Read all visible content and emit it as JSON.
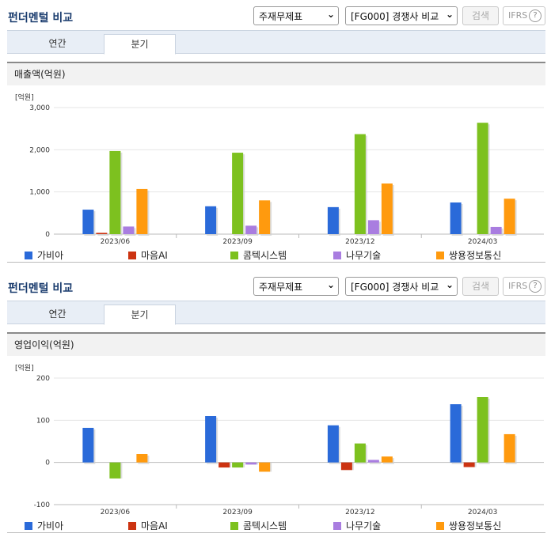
{
  "panels": [
    {
      "title": "펀더멘털 비교",
      "select_statement": "주재무제표",
      "select_compare": "[FG000] 경쟁사 비교",
      "search_label": "검색",
      "ifrs_label": "IFRS",
      "ifrs_help": "?",
      "tabs": [
        {
          "label": "연간",
          "active": false
        },
        {
          "label": "분기",
          "active": true
        }
      ],
      "chart_title": "매출액(억원)"
    },
    {
      "title": "펀더멘털 비교",
      "select_statement": "주재무제표",
      "select_compare": "[FG000] 경쟁사 비교",
      "search_label": "검색",
      "ifrs_label": "IFRS",
      "ifrs_help": "?",
      "tabs": [
        {
          "label": "연간",
          "active": false
        },
        {
          "label": "분기",
          "active": true
        }
      ],
      "chart_title": "영업이익(억원)"
    }
  ],
  "colors": {
    "가비아": "#2a6ad9",
    "마음AI": "#cc3311",
    "콤텍시스템": "#7dc11f",
    "나무기술": "#a97de0",
    "쌍용정보통신": "#ff9a0e"
  },
  "chart_data": [
    {
      "type": "bar",
      "title": "매출액(억원)",
      "unit": "[억원]",
      "categories": [
        "2023/06",
        "2023/09",
        "2023/12",
        "2024/03"
      ],
      "yticks": [
        "3,000",
        "2,000",
        "1,000",
        "0"
      ],
      "ylim": [
        0,
        3000
      ],
      "tick_values": [
        3000,
        2000,
        1000,
        0
      ],
      "grid": true,
      "legend": "bottom",
      "series": [
        {
          "name": "가비아",
          "values": [
            580,
            660,
            640,
            750
          ]
        },
        {
          "name": "마음AI",
          "values": [
            30,
            0,
            0,
            0
          ]
        },
        {
          "name": "콤텍시스템",
          "values": [
            1970,
            1930,
            2370,
            2640
          ]
        },
        {
          "name": "나무기술",
          "values": [
            180,
            200,
            330,
            170
          ]
        },
        {
          "name": "쌍용정보통신",
          "values": [
            1070,
            800,
            1200,
            840
          ]
        }
      ]
    },
    {
      "type": "bar",
      "title": "영업이익(억원)",
      "unit": "[억원]",
      "categories": [
        "2023/06",
        "2023/09",
        "2023/12",
        "2024/03"
      ],
      "yticks": [
        "200",
        "100",
        "0",
        "-100"
      ],
      "ylim": [
        -100,
        200
      ],
      "tick_values": [
        200,
        100,
        0,
        -100
      ],
      "grid": true,
      "legend": "bottom",
      "series": [
        {
          "name": "가비아",
          "values": [
            82,
            110,
            88,
            138
          ]
        },
        {
          "name": "마음AI",
          "values": [
            0,
            -12,
            -18,
            -11
          ]
        },
        {
          "name": "콤텍시스템",
          "values": [
            -38,
            -12,
            45,
            155
          ]
        },
        {
          "name": "나무기술",
          "values": [
            0,
            -5,
            6,
            0
          ]
        },
        {
          "name": "쌍용정보통신",
          "values": [
            20,
            -22,
            14,
            67
          ]
        }
      ]
    }
  ]
}
